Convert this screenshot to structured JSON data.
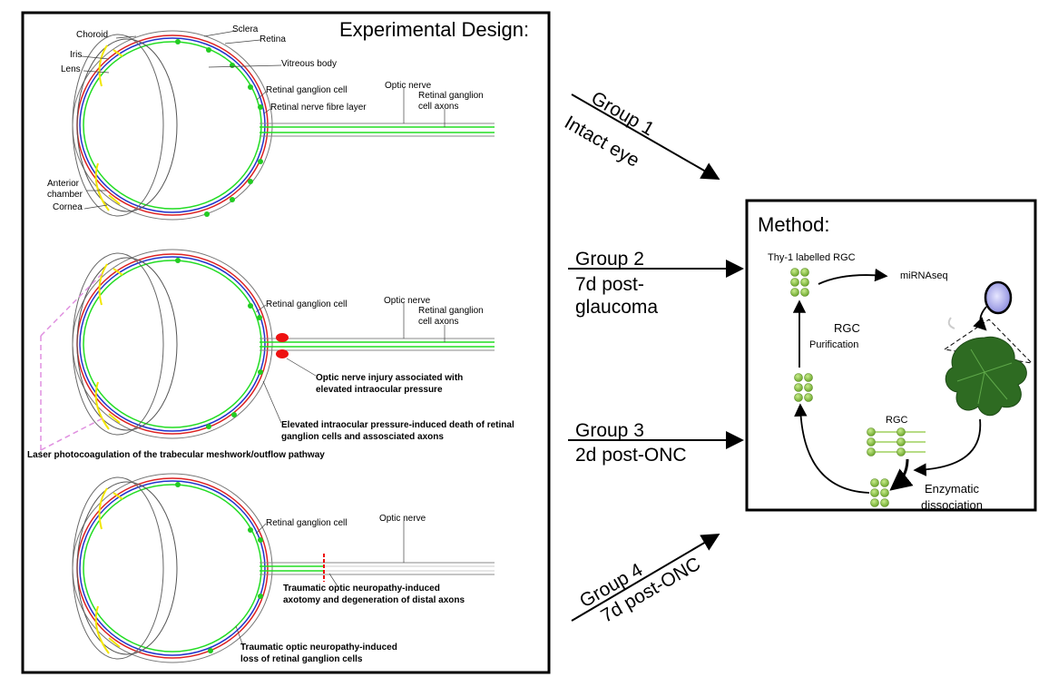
{
  "experimental_panel": {
    "title": "Experimental Design:",
    "eye1": {
      "labels": {
        "choroid": "Choroid",
        "sclera": "Sclera",
        "retina": "Retina",
        "iris": "Iris",
        "lens": "Lens",
        "vitreous": "Vitreous body",
        "rgc": "Retinal ganglion cell",
        "rnfl": "Retinal nerve fibre layer",
        "optic_nerve": "Optic nerve",
        "rgc_axons_1": "Retinal ganglion",
        "rgc_axons_2": "cell axons",
        "anterior_1": "Anterior",
        "anterior_2": "chamber",
        "cornea": "Cornea"
      }
    },
    "eye2": {
      "labels": {
        "rgc": "Retinal ganglion cell",
        "optic_nerve": "Optic nerve",
        "rgc_axons_1": "Retinal ganglion",
        "rgc_axons_2": "cell axons",
        "injury_1": "Optic nerve injury associated with",
        "injury_2": "elevated intraocular pressure",
        "death_1": "Elevated intraocular pressure-induced death of retinal",
        "death_2": "ganglion cells and assosciated axons",
        "laser": "Laser photocoagulation of the trabecular meshwork/outflow pathway"
      }
    },
    "eye3": {
      "labels": {
        "rgc": "Retinal ganglion cell",
        "optic_nerve": "Optic nerve",
        "axotomy_1": "Traumatic optic neuropathy-induced",
        "axotomy_2": "axotomy and degeneration of distal axons",
        "loss_1": "Traumatic optic neuropathy-induced",
        "loss_2": "loss of retinal ganglion cells"
      }
    }
  },
  "groups": [
    {
      "line1": "Group 1",
      "line2": "Intact eye"
    },
    {
      "line1": "Group 2",
      "line2": "7d post-",
      "line3": "glaucoma"
    },
    {
      "line1": "Group 3",
      "line2": "2d post-ONC"
    },
    {
      "line1": "Group 4",
      "line2": "7d post-ONC"
    }
  ],
  "method_panel": {
    "title": "Method:",
    "thy1": "Thy-1 labelled RGC",
    "mirnaseq": "miRNAseq",
    "rgc_purif_1": "RGC",
    "rgc_purif_2": "Purification",
    "rgc_small": "RGC",
    "enzymatic_1": "Enzymatic",
    "enzymatic_2": "dissociation"
  },
  "colors": {
    "retina_green": "#22dd22",
    "rgc_dot": "#22cc22",
    "sclera_blue": "#2233cc",
    "choroid_red": "#dd2222",
    "lens_yellow": "#f2e600",
    "laser_pink": "#e090e0",
    "injury_red": "#ee1111",
    "cell_green": "#8cc63f",
    "retina_dark": "#2e6b22"
  }
}
